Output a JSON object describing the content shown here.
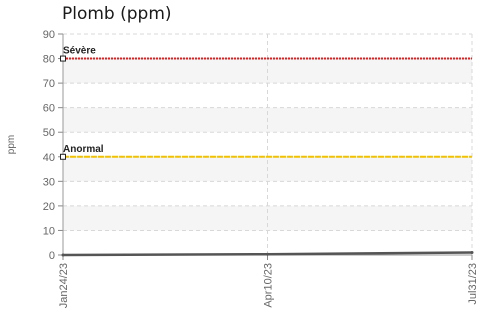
{
  "chart_data": {
    "type": "line",
    "title": "Plomb (ppm)",
    "ylabel": "ppm",
    "xlabel": "",
    "ylim": [
      0,
      90
    ],
    "yticks": [
      0,
      10,
      20,
      30,
      40,
      50,
      60,
      70,
      80,
      90
    ],
    "x": [
      "Jan24/23",
      "Apr10/23",
      "Jul31/23"
    ],
    "grid": true,
    "series": [
      {
        "values": [
          0,
          0.3,
          1
        ],
        "color": "#555555"
      }
    ],
    "thresholds": [
      {
        "label": "Sévère",
        "value": 80,
        "color": "#e02020"
      },
      {
        "label": "Anormal",
        "value": 40,
        "color": "#f2c200"
      }
    ]
  }
}
